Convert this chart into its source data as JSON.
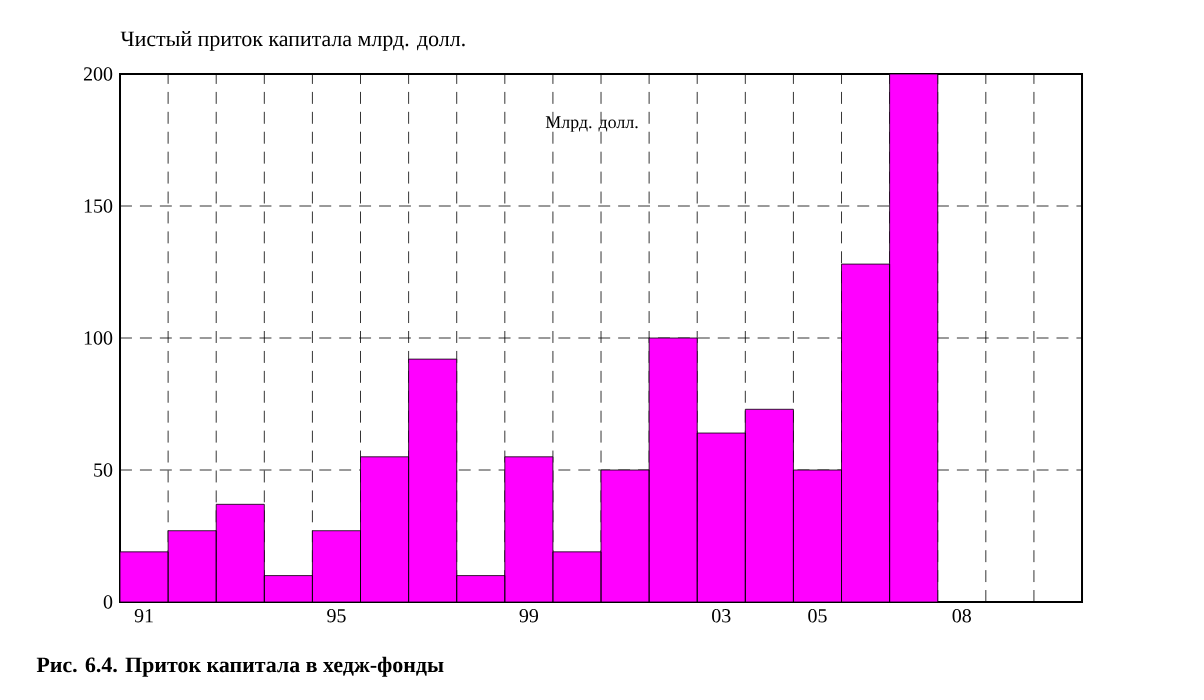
{
  "chart_data": {
    "type": "bar",
    "title": "Чистый приток капитала млрд. долл.",
    "categories": [
      "91",
      null,
      null,
      null,
      "95",
      null,
      null,
      null,
      "99",
      null,
      null,
      null,
      "03",
      null,
      "05",
      null,
      null,
      "08",
      null,
      null
    ],
    "values": [
      19,
      27,
      37,
      10,
      27,
      55,
      92,
      10,
      55,
      19,
      50,
      100,
      64,
      73,
      50,
      128,
      200,
      null,
      null,
      null
    ],
    "color": "#ff00ff",
    "ylim": [
      0,
      200
    ],
    "yticks": [
      0,
      50,
      100,
      150,
      200
    ],
    "grid": true,
    "annotations": [
      "Млрд. долл.",
      "**Рис. 6.4. Приток капитала в хедж-фонды**"
    ]
  }
}
